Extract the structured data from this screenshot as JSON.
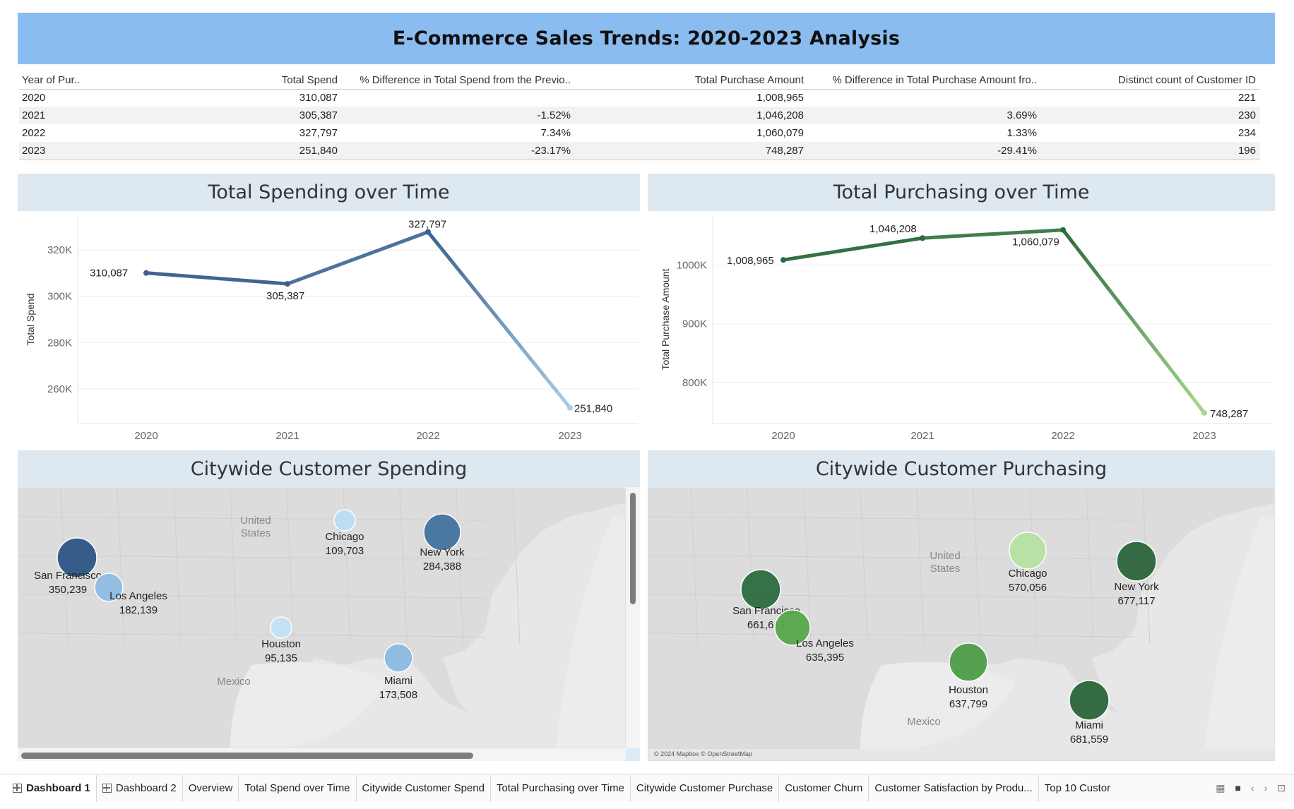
{
  "title": "E-Commerce Sales Trends: 2020-2023 Analysis",
  "table": {
    "headers": [
      "Year of Pur..",
      "Total Spend",
      "% Difference in Total Spend from the Previo..",
      "Total Purchase Amount",
      "% Difference in Total Purchase Amount fro..",
      "Distinct count of Customer ID"
    ],
    "rows": [
      [
        "2020",
        "310,087",
        "",
        "1,008,965",
        "",
        "221"
      ],
      [
        "2021",
        "305,387",
        "-1.52%",
        "1,046,208",
        "3.69%",
        "230"
      ],
      [
        "2022",
        "327,797",
        "7.34%",
        "1,060,079",
        "1.33%",
        "234"
      ],
      [
        "2023",
        "251,840",
        "-23.17%",
        "748,287",
        "-29.41%",
        "196"
      ]
    ]
  },
  "panels": {
    "spend_title": "Total Spending over Time",
    "purchase_title": "Total Purchasing over Time",
    "city_spend_title": "Citywide Customer Spending",
    "city_purchase_title": "Citywide Customer Purchasing"
  },
  "chart_data": [
    {
      "type": "line",
      "title": "Total Spending over Time",
      "x": [
        "2020",
        "2021",
        "2022",
        "2023"
      ],
      "y": [
        310087,
        305387,
        327797,
        251840
      ],
      "labels": [
        "310,087",
        "305,387",
        "327,797",
        "251,840"
      ],
      "ylabel": "Total Spend",
      "yticks": [
        "260K",
        "280K",
        "300K",
        "320K"
      ],
      "ylim": [
        245000,
        335000
      ],
      "grid": true,
      "colors": {
        "start": "#3a5f8c",
        "end": "#a8cde8"
      }
    },
    {
      "type": "line",
      "title": "Total Purchasing over Time",
      "x": [
        "2020",
        "2021",
        "2022",
        "2023"
      ],
      "y": [
        1008965,
        1046208,
        1060079,
        748287
      ],
      "labels": [
        "1,008,965",
        "1,046,208",
        "1,060,079",
        "748,287"
      ],
      "ylabel": "Total Purchase Amount",
      "yticks": [
        "800K",
        "900K",
        "1000K"
      ],
      "ylim": [
        730000,
        1085000
      ],
      "grid": true,
      "colors": {
        "start": "#2d6a3e",
        "end": "#a6d98e"
      }
    }
  ],
  "maps": {
    "country_labels": {
      "us": "United\nStates",
      "mexico": "Mexico"
    },
    "credit": "© 2024 Mapbox © OpenStreetMap",
    "spend_cities": [
      {
        "name": "San Francisco",
        "value": "350,239",
        "color": "#2c5585"
      },
      {
        "name": "Los Angeles",
        "value": "182,139",
        "color": "#8fbde3"
      },
      {
        "name": "Chicago",
        "value": "109,703",
        "color": "#b9dcf2"
      },
      {
        "name": "New York",
        "value": "284,388",
        "color": "#41729f"
      },
      {
        "name": "Houston",
        "value": "95,135",
        "color": "#c3e2f4"
      },
      {
        "name": "Miami",
        "value": "173,508",
        "color": "#8ab9df"
      }
    ],
    "purchase_cities": [
      {
        "name": "San Francisco",
        "value": "661,613",
        "color": "#2c6a3e"
      },
      {
        "name": "Los Angeles",
        "value": "635,395",
        "color": "#56a74a"
      },
      {
        "name": "Chicago",
        "value": "570,056",
        "color": "#b5e0a2"
      },
      {
        "name": "New York",
        "value": "677,117",
        "color": "#2a6439"
      },
      {
        "name": "Houston",
        "value": "637,799",
        "color": "#4e9d48"
      },
      {
        "name": "Miami",
        "value": "681,559",
        "color": "#2a6439"
      }
    ]
  },
  "tabs": [
    "Dashboard 1",
    "Dashboard 2",
    "Overview",
    "Total Spend over Time",
    "Citywide Customer Spend",
    "Total Purchasing over Time",
    "Citywide Customer Purchase",
    "Customer Churn",
    "Customer Satisfaction by Produ...",
    "Top 10 Custor"
  ]
}
